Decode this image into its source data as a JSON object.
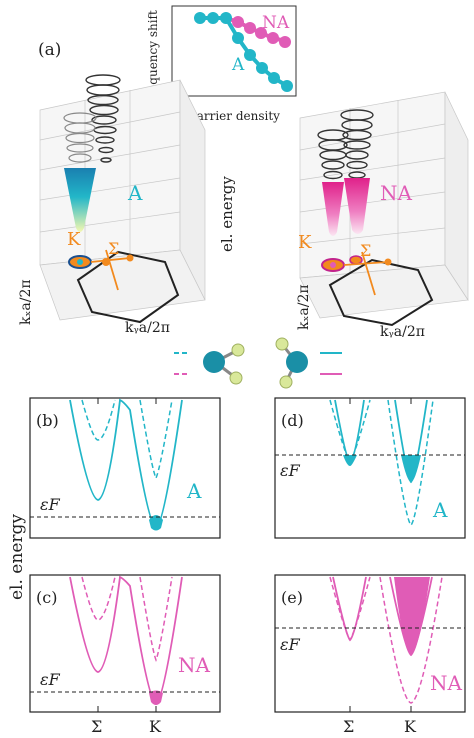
{
  "colors": {
    "teal": "#22b6c8",
    "pink": "#e05cb6",
    "orange": "#f28a1e",
    "dark": "#222222",
    "ball_teal": "#1a8fa6",
    "ball_green": "#d9e89a"
  },
  "panel_a": {
    "label": "(a)",
    "inset": {
      "ylabel": "frequency shift",
      "xlabel": "carrier density",
      "series": [
        {
          "name": "NA",
          "color": "pink"
        },
        {
          "name": "A",
          "color": "teal"
        }
      ]
    },
    "left_plot": {
      "label": "A",
      "k_label": "K",
      "sigma_label": "Σ",
      "xaxis": "kₓa/2π",
      "yaxis": "kᵧa/2π"
    },
    "right_plot": {
      "label": "NA",
      "k_label": "K",
      "sigma_label": "Σ",
      "xaxis": "kₓa/2π",
      "yaxis": "kᵧa/2π"
    },
    "zlabel": "el. energy"
  },
  "energy_axis_label": "el. energy",
  "panels": {
    "b": {
      "label": "(b)",
      "name": "A",
      "fermi": "εF"
    },
    "c": {
      "label": "(c)",
      "name": "NA",
      "fermi": "εF"
    },
    "d": {
      "label": "(d)",
      "name": "",
      "fermi": "εF",
      "text": "A"
    },
    "e": {
      "label": "(e)",
      "name": "NA",
      "fermi": "εF"
    }
  },
  "xticks": [
    "Σ",
    "K"
  ]
}
